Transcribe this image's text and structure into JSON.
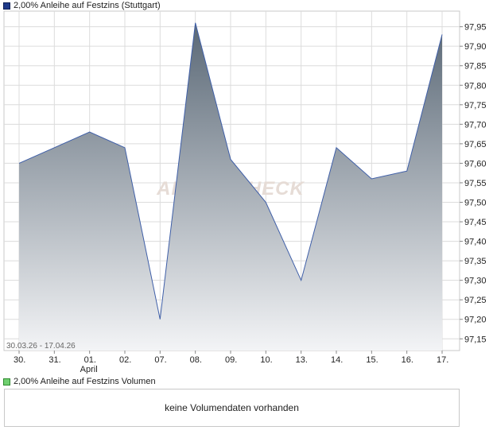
{
  "price_panel": {
    "legend_label": "2,00% Anleihe  auf Festzins (Stuttgart)",
    "date_range": "30.03.26 - 17.04.26",
    "watermark": "AKTIENCHECK"
  },
  "volume_panel": {
    "legend_label": "2,00% Anleihe  auf Festzins Volumen",
    "message": "keine Volumendaten vorhanden"
  },
  "colors": {
    "line": "#3f5fa8",
    "area_top": "#5a6876",
    "area_bottom": "#f3f4f6",
    "grid": "#dcdcdc",
    "border": "#c8c8c8"
  },
  "chart_data": {
    "type": "area",
    "categories": [
      "30.",
      "31.",
      "01.",
      "02.",
      "07.",
      "08.",
      "09.",
      "10.",
      "13.",
      "14.",
      "15.",
      "16.",
      "17."
    ],
    "sub_labels": [
      "",
      "",
      "April",
      "",
      "",
      "",
      "",
      "",
      "",
      "",
      "",
      "",
      ""
    ],
    "values": [
      97.6,
      97.64,
      97.68,
      97.64,
      97.2,
      97.96,
      97.61,
      97.5,
      97.3,
      97.64,
      97.56,
      97.58,
      97.93
    ],
    "ylim": [
      97.12,
      97.99
    ],
    "y_ticks": [
      97.15,
      97.2,
      97.25,
      97.3,
      97.35,
      97.4,
      97.45,
      97.5,
      97.55,
      97.6,
      97.65,
      97.7,
      97.75,
      97.8,
      97.85,
      97.9,
      97.95
    ],
    "y_tick_labels": [
      "97,15",
      "97,20",
      "97,25",
      "97,30",
      "97,35",
      "97,40",
      "97,45",
      "97,50",
      "97,55",
      "97,60",
      "97,65",
      "97,70",
      "97,75",
      "97,80",
      "97,85",
      "97,90",
      "97,95"
    ],
    "grid": true,
    "y_axis_position": "right",
    "title": "",
    "xlabel": "",
    "ylabel": ""
  }
}
